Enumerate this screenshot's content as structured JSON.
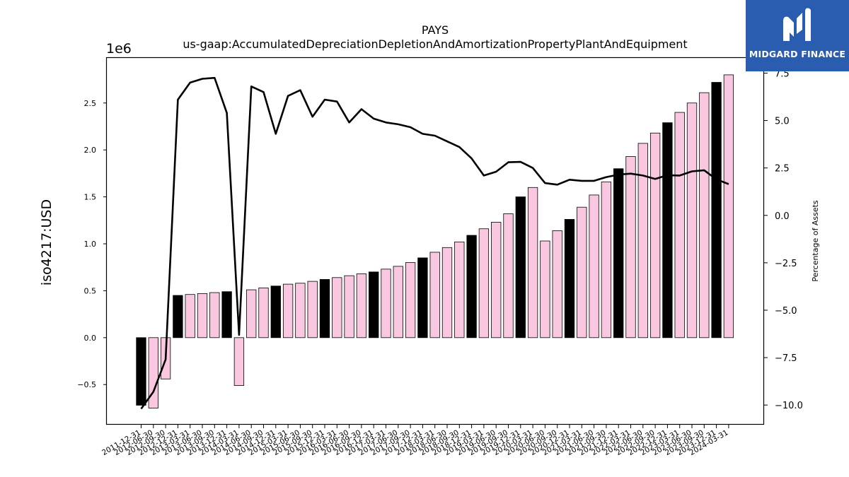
{
  "chart_data": {
    "type": "bar",
    "title": "PAYS",
    "subtitle": "us-gaap:AccumulatedDepreciationDepletionAndAmortizationPropertyPlantAndEquipment",
    "ylabel": "iso4217:USD",
    "y_offset_label": "1e6",
    "y2label": "Percentage of Assets",
    "ylim": [
      -0.92,
      2.98
    ],
    "y2lim": [
      -11.0,
      8.3
    ],
    "yticks": [
      -0.5,
      0.0,
      0.5,
      1.0,
      1.5,
      2.0,
      2.5
    ],
    "ytick_labels": [
      "−0.5",
      "0.0",
      "0.5",
      "1.0",
      "1.5",
      "2.0",
      "2.5"
    ],
    "y2ticks": [
      -10.0,
      -7.5,
      -5.0,
      -2.5,
      0.0,
      2.5,
      5.0,
      7.5
    ],
    "y2tick_labels": [
      "−10.0",
      "−7.5",
      "−5.0",
      "−2.5",
      "0.0",
      "2.5",
      "5.0",
      "7.5"
    ],
    "grid": false,
    "legend": "none",
    "categories": [
      "2011-12-31",
      "2012-06-30",
      "2012-09-30",
      "2012-12-31",
      "2013-03-31",
      "2013-06-30",
      "2013-09-30",
      "2013-12-31",
      "2014-03-31",
      "2014-06-30",
      "2014-09-30",
      "2014-12-31",
      "2015-03-31",
      "2015-06-30",
      "2015-09-30",
      "2015-12-31",
      "2016-03-31",
      "2016-06-30",
      "2016-09-30",
      "2016-12-31",
      "2017-03-31",
      "2017-06-30",
      "2017-09-30",
      "2017-12-31",
      "2018-03-31",
      "2018-06-30",
      "2018-09-30",
      "2018-12-31",
      "2019-03-31",
      "2019-06-30",
      "2019-09-30",
      "2019-12-31",
      "2020-03-31",
      "2020-06-30",
      "2020-09-30",
      "2020-12-31",
      "2021-03-31",
      "2021-06-30",
      "2021-09-30",
      "2021-12-31",
      "2022-03-31",
      "2022-06-30",
      "2022-09-30",
      "2022-12-31",
      "2023-03-31",
      "2023-06-30",
      "2023-09-30",
      "2023-12-31",
      "2024-03-31"
    ],
    "series": [
      {
        "kind": "bar",
        "axis": "left",
        "values": [
          -0.72,
          -0.75,
          -0.44,
          0.45,
          0.46,
          0.47,
          0.48,
          0.49,
          -0.51,
          0.51,
          0.53,
          0.55,
          0.57,
          0.58,
          0.6,
          0.62,
          0.64,
          0.66,
          0.68,
          0.7,
          0.73,
          0.76,
          0.8,
          0.85,
          0.91,
          0.96,
          1.02,
          1.09,
          1.16,
          1.23,
          1.32,
          1.5,
          1.6,
          1.03,
          1.14,
          1.26,
          1.39,
          1.52,
          1.66,
          1.8,
          1.93,
          2.07,
          2.18,
          2.29,
          2.4,
          2.5,
          2.61,
          2.72,
          2.8
        ],
        "colors": [
          "#000000",
          "#f9c8e0",
          "#f9c8e0",
          "#000000",
          "#f9c8e0",
          "#f9c8e0",
          "#f9c8e0",
          "#000000",
          "#f9c8e0",
          "#f9c8e0",
          "#f9c8e0",
          "#000000",
          "#f9c8e0",
          "#f9c8e0",
          "#f9c8e0",
          "#000000",
          "#f9c8e0",
          "#f9c8e0",
          "#f9c8e0",
          "#000000",
          "#f9c8e0",
          "#f9c8e0",
          "#f9c8e0",
          "#000000",
          "#f9c8e0",
          "#f9c8e0",
          "#f9c8e0",
          "#000000",
          "#f9c8e0",
          "#f9c8e0",
          "#f9c8e0",
          "#000000",
          "#f9c8e0",
          "#f9c8e0",
          "#f9c8e0",
          "#000000",
          "#f9c8e0",
          "#f9c8e0",
          "#f9c8e0",
          "#000000",
          "#f9c8e0",
          "#f9c8e0",
          "#f9c8e0",
          "#000000",
          "#f9c8e0",
          "#f9c8e0",
          "#f9c8e0",
          "#000000",
          "#f9c8e0"
        ]
      },
      {
        "kind": "line",
        "axis": "right",
        "color": "#000000",
        "values": [
          -10.2,
          -9.3,
          -7.6,
          6.1,
          7.0,
          7.2,
          7.25,
          5.4,
          -6.3,
          6.8,
          6.5,
          4.3,
          6.3,
          6.6,
          5.2,
          6.1,
          6.0,
          4.9,
          5.6,
          5.1,
          4.9,
          4.8,
          4.65,
          4.3,
          4.2,
          3.9,
          3.6,
          3.0,
          2.1,
          2.3,
          2.8,
          2.82,
          2.5,
          1.7,
          1.62,
          1.88,
          1.82,
          1.82,
          2.02,
          2.15,
          2.2,
          2.1,
          1.92,
          2.12,
          2.1,
          2.32,
          2.38,
          1.9,
          1.65
        ]
      }
    ]
  },
  "logo": {
    "text": "MIDGARD FINANCE",
    "background": "#2a5db0"
  }
}
